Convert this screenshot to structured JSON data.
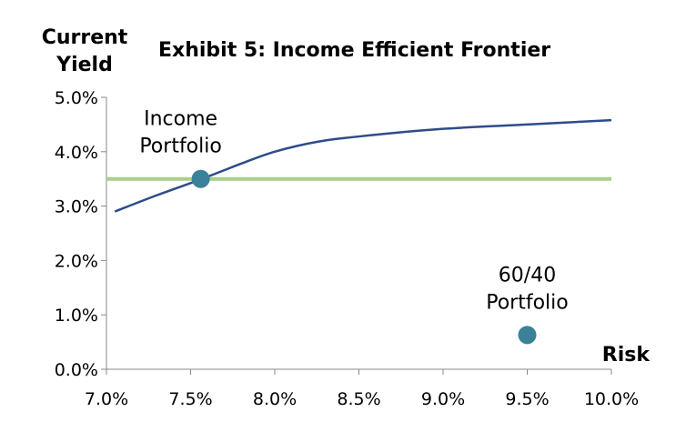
{
  "chart_data": {
    "type": "line",
    "title": "Exhibit 5: Income Efficient Frontier",
    "ylabel_lines": [
      "Current",
      "Yield"
    ],
    "xlabel": "Risk",
    "xlim": [
      7.0,
      10.0
    ],
    "ylim": [
      0.0,
      5.0
    ],
    "x_ticks": [
      7.0,
      7.5,
      8.0,
      8.5,
      9.0,
      9.5,
      10.0
    ],
    "x_tick_labels": [
      "7.0%",
      "7.5%",
      "8.0%",
      "8.5%",
      "9.0%",
      "9.5%",
      "10.0%"
    ],
    "y_ticks": [
      0,
      1,
      2,
      3,
      4,
      5
    ],
    "y_tick_labels": [
      "0.0%",
      "1.0%",
      "2.0%",
      "3.0%",
      "4.0%",
      "5.0%"
    ],
    "grid": false,
    "legend": "none",
    "series": [
      {
        "kind": "curve",
        "color": "#2f4b8a",
        "x": [
          7.05,
          7.3,
          7.55,
          7.8,
          8.0,
          8.25,
          8.5,
          9.0,
          9.5,
          10.0
        ],
        "y": [
          2.9,
          3.2,
          3.48,
          3.78,
          4.0,
          4.18,
          4.28,
          4.42,
          4.5,
          4.58
        ]
      },
      {
        "kind": "hline",
        "color": "#a9cf8a",
        "y": 3.5,
        "x": [
          7.0,
          10.0
        ]
      }
    ],
    "points": [
      {
        "label_lines": [
          "Income",
          "Portfolio"
        ],
        "x": 7.56,
        "y": 3.5,
        "color": "#3a8199"
      },
      {
        "label_lines": [
          "60/40",
          "Portfolio"
        ],
        "x": 9.5,
        "y": 0.63,
        "color": "#3a8199"
      }
    ]
  }
}
